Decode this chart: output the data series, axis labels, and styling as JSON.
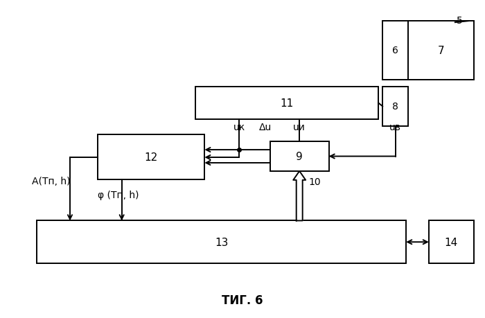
{
  "title": "ΤИГ. 6",
  "bg_color": "#ffffff",
  "line_color": "#000000",
  "lw": 1.4,
  "label_5": "5",
  "label_6": "6",
  "label_7": "7",
  "label_8": "8",
  "label_9": "9",
  "label_10": "10",
  "label_11": "11",
  "label_12": "12",
  "label_13": "13",
  "label_14": "14",
  "label_uk": "uк",
  "label_du": "Δu",
  "label_ui": "uи",
  "label_uv": "uв",
  "label_A": "A(Tп, h)",
  "label_phi": "φ (Tп, h)"
}
